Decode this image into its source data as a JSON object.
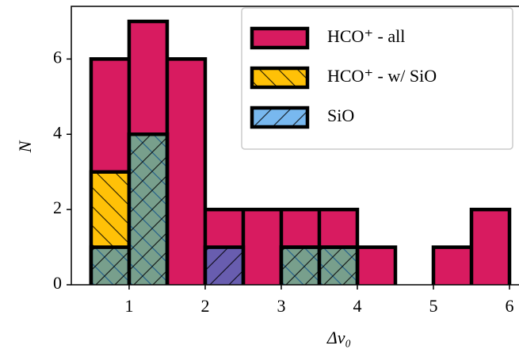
{
  "chart_data": {
    "type": "histogram",
    "x_label": "Δv₀",
    "y_label": "N",
    "bins": [
      0.5,
      1.0,
      1.5,
      2.0,
      2.5,
      3.0,
      3.5,
      4.0,
      4.5,
      5.0,
      5.5,
      6.0
    ],
    "series": [
      {
        "name": "HCO⁺ - all",
        "color": "#d81b60",
        "hatch": "",
        "opacity": 1,
        "values": [
          6,
          7,
          6,
          2,
          2,
          2,
          2,
          1,
          0,
          1,
          2
        ]
      },
      {
        "name": "HCO⁺ - w/ SiO",
        "color": "#ffc107",
        "hatch": "\\",
        "opacity": 1,
        "values": [
          3,
          4,
          0,
          0,
          0,
          1,
          1,
          0,
          0,
          0,
          0
        ]
      },
      {
        "name": "SiO",
        "color": "#1e88e5",
        "hatch": "/",
        "opacity": 0.6,
        "values": [
          1,
          4,
          0,
          1,
          0,
          1,
          1,
          0,
          0,
          0,
          0
        ]
      }
    ],
    "xlim": [
      0.24,
      6.125
    ],
    "ylim": [
      0,
      7.4
    ],
    "xticks": [
      1,
      2,
      3,
      4,
      5,
      6
    ],
    "yticks": [
      0,
      2,
      4,
      6
    ],
    "legend": "upper right"
  }
}
